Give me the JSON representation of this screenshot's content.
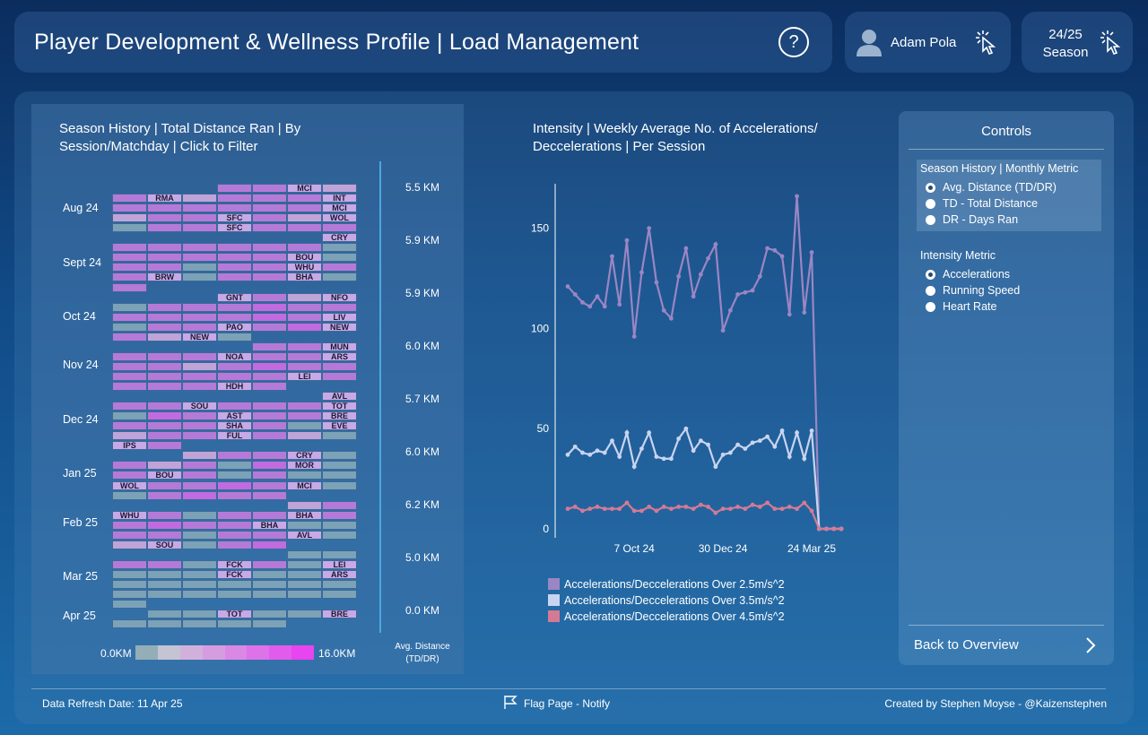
{
  "header": {
    "title": "Player Development & Wellness Profile | Load Management",
    "help_icon": "?",
    "player_name": "Adam Pola",
    "season_line1": "24/25",
    "season_line2": "Season"
  },
  "heatmap": {
    "title_line1": "Season History | Total Distance Ran | By",
    "title_line2": "Session/Matchday | Click to Filter",
    "months": [
      {
        "label": "Aug 24",
        "km": "5.5 KM"
      },
      {
        "label": "Sept 24",
        "km": "5.9 KM"
      },
      {
        "label": "Oct 24",
        "km": "5.9 KM"
      },
      {
        "label": "Nov 24",
        "km": "6.0 KM"
      },
      {
        "label": "Dec 24",
        "km": "5.7 KM"
      },
      {
        "label": "Jan 25",
        "km": "6.0 KM"
      },
      {
        "label": "Feb 25",
        "km": "6.2 KM"
      },
      {
        "label": "Mar 25",
        "km": "5.0 KM"
      },
      {
        "label": "Apr 25",
        "km": "0.0 KM"
      }
    ],
    "legend_min": "0.0KM",
    "legend_max": "16.0KM",
    "metric_label_line1": "Avg. Distance",
    "metric_label_line2": "(TD/DR)",
    "rows": [
      [
        "",
        "",
        "",
        "m",
        "m",
        "MCI",
        "l"
      ],
      [
        "m",
        "RMA",
        "l",
        "m",
        "m",
        "m",
        "INT"
      ],
      [
        "m",
        "m",
        "m",
        "m",
        "m",
        "m",
        "MCI"
      ],
      [
        "l",
        "m",
        "m",
        "SFC",
        "m",
        "l",
        "WOL"
      ],
      [
        "g",
        "m",
        "m",
        "SFC",
        "m",
        "m",
        "m"
      ],
      [
        "",
        "",
        "",
        "",
        "",
        "",
        "CRY"
      ],
      [
        "m",
        "m",
        "m",
        "m",
        "m",
        "m",
        "g"
      ],
      [
        "m",
        "m",
        "m",
        "m",
        "m",
        "BOU",
        "g"
      ],
      [
        "m",
        "m",
        "g",
        "m",
        "m",
        "WHU",
        "m"
      ],
      [
        "m",
        "BRW",
        "g",
        "m",
        "m",
        "BHA",
        "g"
      ],
      [
        "m",
        "",
        "",
        "",
        "",
        "",
        ""
      ],
      [
        "",
        "",
        "",
        "GNT",
        "m",
        "l",
        "NFO"
      ],
      [
        "g",
        "m",
        "m",
        "m",
        "p",
        "m",
        "m"
      ],
      [
        "m",
        "m",
        "m",
        "m",
        "p",
        "m",
        "LIV"
      ],
      [
        "g",
        "m",
        "m",
        "PAO",
        "m",
        "p",
        "NEW"
      ],
      [
        "m",
        "l",
        "NEW",
        "g",
        "",
        "",
        ""
      ],
      [
        "",
        "",
        "",
        "",
        "m",
        "m",
        "MUN"
      ],
      [
        "m",
        "m",
        "m",
        "NOA",
        "m",
        "m",
        "ARS"
      ],
      [
        "m",
        "m",
        "l",
        "m",
        "p",
        "m",
        "m"
      ],
      [
        "m",
        "m",
        "m",
        "m",
        "m",
        "LEI",
        "m"
      ],
      [
        "m",
        "m",
        "m",
        "HDH",
        "m",
        "",
        ""
      ],
      [
        "",
        "",
        "",
        "",
        "",
        "",
        "AVL"
      ],
      [
        "m",
        "m",
        "SOU",
        "m",
        "m",
        "m",
        "TOT"
      ],
      [
        "g",
        "p",
        "m",
        "AST",
        "m",
        "m",
        "BRE"
      ],
      [
        "m",
        "m",
        "m",
        "SHA",
        "m",
        "g",
        "EVE"
      ],
      [
        "l",
        "m",
        "m",
        "FUL",
        "m",
        "l",
        "g"
      ],
      [
        "IPS",
        "m",
        "",
        "",
        "",
        "",
        ""
      ],
      [
        "",
        "",
        "l",
        "m",
        "m",
        "CRY",
        "g"
      ],
      [
        "m",
        "l",
        "m",
        "g",
        "p",
        "MOR",
        "g"
      ],
      [
        "m",
        "BOU",
        "m",
        "g",
        "m",
        "g",
        "g"
      ],
      [
        "WOL",
        "m",
        "m",
        "p",
        "m",
        "MCI",
        "g"
      ],
      [
        "g",
        "m",
        "p",
        "m",
        "m",
        "",
        ""
      ],
      [
        "",
        "",
        "",
        "",
        "",
        "l",
        "m"
      ],
      [
        "WHU",
        "m",
        "g",
        "m",
        "m",
        "BHA",
        "m"
      ],
      [
        "m",
        "p",
        "m",
        "m",
        "BHA",
        "g",
        "g"
      ],
      [
        "m",
        "m",
        "g",
        "m",
        "m",
        "AVL",
        "g"
      ],
      [
        "l",
        "SOU",
        "g",
        "m",
        "p",
        "",
        ""
      ],
      [
        "",
        "",
        "",
        "",
        "",
        "g",
        "g"
      ],
      [
        "m",
        "m",
        "g",
        "FCK",
        "m",
        "g",
        "LEI"
      ],
      [
        "g",
        "g",
        "g",
        "FCK",
        "g",
        "g",
        "ARS"
      ],
      [
        "g",
        "g",
        "g",
        "g",
        "g",
        "g",
        "g"
      ],
      [
        "g",
        "g",
        "g",
        "g",
        "g",
        "g",
        "g"
      ],
      [
        "g",
        "",
        "",
        "",
        "",
        "",
        ""
      ],
      [
        "",
        "g",
        "g",
        "TOT",
        "g",
        "g",
        "BRE"
      ],
      [
        "g",
        "g",
        "g",
        "g",
        "g",
        "",
        ""
      ]
    ]
  },
  "intensity": {
    "title_line1": "Intensity | Weekly Average No. of Accelerations/",
    "title_line2": "Deccelerations | Per Session"
  },
  "chart_data": {
    "type": "line",
    "title": "Intensity | Weekly Average No. of Accelerations/ Deccelerations | Per Session",
    "y_ticks": [
      "0",
      "50",
      "100",
      "150"
    ],
    "ylim": [
      0,
      170
    ],
    "x_ticks": [
      "7 Oct 24",
      "30 Dec 24",
      "24 Mar 25"
    ],
    "x_tick_index": [
      9,
      21,
      33
    ],
    "series": [
      {
        "name": "Accelerations/Deccelerations Over 2.5m/s^2",
        "color": "#9a86c4",
        "values": [
          121,
          117,
          113,
          111,
          116,
          111,
          136,
          112,
          144,
          96,
          128,
          150,
          123,
          109,
          105,
          126,
          140,
          116,
          127,
          135,
          142,
          99,
          109,
          117,
          118,
          119,
          126,
          140,
          139,
          136,
          107,
          166,
          108,
          138,
          0,
          0,
          0,
          0
        ]
      },
      {
        "name": "Accelerations/Deccelerations Over 3.5m/s^2",
        "color": "#c9d4f0",
        "values": [
          37,
          41,
          38,
          37,
          39,
          38,
          44,
          36,
          48,
          31,
          40,
          48,
          36,
          35,
          35,
          45,
          50,
          39,
          44,
          42,
          31,
          37,
          38,
          42,
          40,
          43,
          44,
          46,
          41,
          49,
          36,
          48,
          35,
          49,
          0,
          0,
          0,
          0
        ]
      },
      {
        "name": "Accelerations/Deccelerations Over 4.5m/s^2",
        "color": "#d47a95",
        "values": [
          10,
          11,
          9,
          10,
          11,
          10,
          10,
          10,
          13,
          9,
          9,
          11,
          9,
          11,
          10,
          11,
          11,
          10,
          12,
          11,
          8,
          10,
          10,
          11,
          10,
          12,
          11,
          13,
          10,
          10,
          11,
          10,
          13,
          9,
          0,
          0,
          0,
          0
        ]
      }
    ]
  },
  "controls": {
    "title": "Controls",
    "season_history_label": "Season History | Monthly Metric",
    "season_options": [
      "Avg. Distance (TD/DR)",
      "TD - Total Distance",
      "DR - Days Ran"
    ],
    "intensity_label": "Intensity Metric",
    "intensity_options": [
      "Accelerations",
      "Running Speed",
      "Heart Rate"
    ],
    "back_label": "Back to Overview"
  },
  "footer": {
    "refresh": "Data Refresh Date: 11 Apr 25",
    "flag": "Flag Page - Notify",
    "credit": "Created by Stephen Moyse - @Kaizenstephen"
  },
  "colors": {
    "magenta": "#b57ad8",
    "lilac": "#c0a4d8",
    "purple": "#c26ae0",
    "greyblue": "#7ba2b6",
    "accent_line": "#4aa8e0"
  }
}
